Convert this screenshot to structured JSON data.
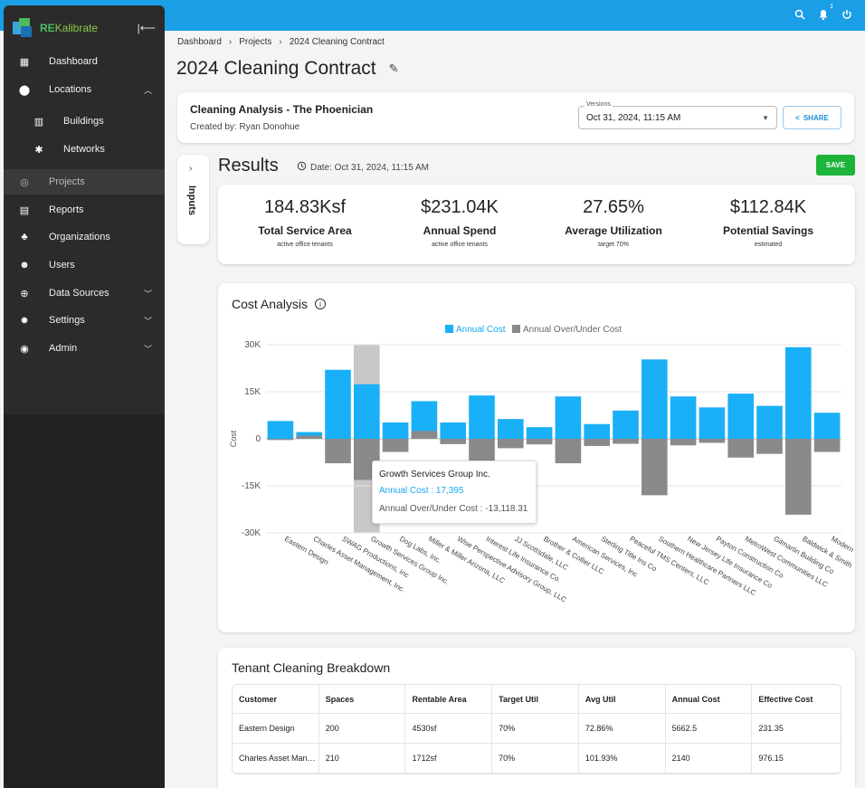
{
  "topbar": {
    "notification_count": "1"
  },
  "sidebar": {
    "brand": {
      "re": "RE",
      "rest": "Kalibrate"
    },
    "items": [
      {
        "label": "Dashboard",
        "icon": "dashboard-icon"
      },
      {
        "label": "Locations",
        "icon": "location-pin-icon"
      },
      {
        "label": "Buildings",
        "icon": "building-icon"
      },
      {
        "label": "Networks",
        "icon": "network-icon"
      },
      {
        "label": "Projects",
        "icon": "projects-icon"
      },
      {
        "label": "Reports",
        "icon": "report-icon"
      },
      {
        "label": "Organizations",
        "icon": "org-chart-icon"
      },
      {
        "label": "Users",
        "icon": "users-icon"
      },
      {
        "label": "Data Sources",
        "icon": "data-sources-icon"
      },
      {
        "label": "Settings",
        "icon": "gear-icon"
      },
      {
        "label": "Admin",
        "icon": "admin-icon"
      }
    ]
  },
  "breadcrumb": {
    "a": "Dashboard",
    "b": "Projects",
    "c": "2024 Cleaning Contract"
  },
  "page_title": "2024 Cleaning Contract",
  "analysis": {
    "title": "Cleaning Analysis - The Phoenician",
    "created_by": "Created by: Ryan Donohue",
    "versions_label": "Versions",
    "version_value": "Oct 31, 2024, 11:15 AM",
    "share_label": "SHARE"
  },
  "inputs_label": "Inputs",
  "results": {
    "title": "Results",
    "date": "Date: Oct 31, 2024, 11:15 AM",
    "save_label": "SAVE"
  },
  "kpis": [
    {
      "value": "184.83Ksf",
      "label": "Total Service Area",
      "sub": "active office tenants"
    },
    {
      "value": "$231.04K",
      "label": "Annual Spend",
      "sub": "active office tenants"
    },
    {
      "value": "27.65%",
      "label": "Average Utilization",
      "sub": "target 70%"
    },
    {
      "value": "$112.84K",
      "label": "Potential Savings",
      "sub": "estimated"
    }
  ],
  "chart_data": {
    "type": "bar",
    "title": "Cost Analysis",
    "xlabel": "",
    "ylabel": "Cost",
    "ylim": [
      -30000,
      30000
    ],
    "yticks": [
      "30K",
      "15K",
      "0",
      "-15K",
      "-30K"
    ],
    "ytick_values": [
      30000,
      15000,
      0,
      -15000,
      -30000
    ],
    "legend": "top-center",
    "highlight_index": 3,
    "categories": [
      "Eastern Design",
      "Charles Asset Management, Inc.",
      "SWAG Productions, Inc",
      "Growth Services Group Inc.",
      "Dog Labs, Inc.",
      "Miller & Miller Arizona, LLC",
      "Wise Perspective Advisory Group, LLC",
      "Interest Life Insurance Co.",
      "JJ Scottsdale, LLC",
      "Brother & Collier LLC",
      "American Services, Inc",
      "Sterling Title Ins Co",
      "Peaceful TMS Centers, LLC",
      "Southern Healthcare Partners LLC",
      "New Jersey Life Insurance Co",
      "Payton Construction Co",
      "MetroWest Communities LLC",
      "Gilmartin Building Co",
      "Baldwick & Smith",
      "Modern"
    ],
    "series": [
      {
        "name": "Annual Cost",
        "color": "#1ab0f7",
        "values": [
          5662.5,
          2140,
          22000,
          17395,
          5200,
          12000,
          5200,
          13800,
          6300,
          3700,
          13500,
          4700,
          9000,
          25300,
          13500,
          10000,
          14400,
          10500,
          29200,
          8300
        ]
      },
      {
        "name": "Annual Over/Under Cost",
        "color": "#8a8a8a",
        "values": [
          -400,
          1000,
          -7800,
          -13118.31,
          -4200,
          2500,
          -1700,
          -7200,
          -3000,
          -1800,
          -7800,
          -2300,
          -1600,
          -18000,
          -2100,
          -1300,
          -6000,
          -4800,
          -24200,
          -4200
        ]
      }
    ]
  },
  "tooltip": {
    "title": "Growth Services Group Inc.",
    "line_a": "Annual Cost : 17,395",
    "line_b": "Annual Over/Under Cost : -13,118.31"
  },
  "table": {
    "title": "Tenant Cleaning Breakdown",
    "headers": [
      "Customer",
      "Spaces",
      "Rentable Area",
      "Target Util",
      "Avg Util",
      "Annual Cost",
      "Effective Cost"
    ],
    "rows": [
      [
        "Eastern Design",
        "200",
        "4530sf",
        "70%",
        "72.86%",
        "5662.5",
        "231.35"
      ],
      [
        "Charles Asset Man…",
        "210",
        "1712sf",
        "70%",
        "101.93%",
        "2140",
        "976.15"
      ]
    ]
  }
}
